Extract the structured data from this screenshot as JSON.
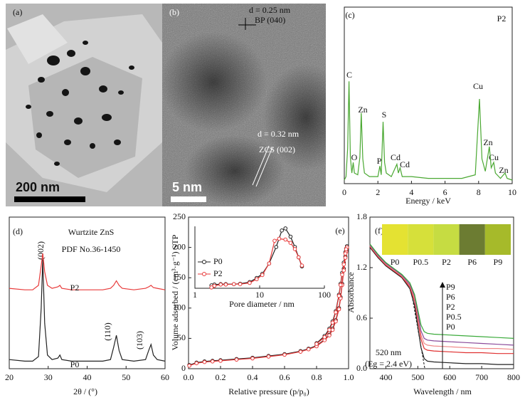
{
  "images": [
    {
      "panel_label": "(a)",
      "scale_bar": "200 nm"
    },
    {
      "panel_label": "(b)",
      "scale_bar": "5 nm",
      "annotations": [
        "d = 0.25 nm",
        "BP (040)",
        "d = 0.32 nm",
        "ZCS (002)"
      ]
    }
  ],
  "chart_data": [
    {
      "type": "line",
      "panel_label": "(c)",
      "x_label": "Energy / keV",
      "xlim": [
        0,
        10
      ],
      "xticks": [
        0,
        2,
        4,
        6,
        8,
        10
      ],
      "ylim": [
        0,
        100
      ],
      "annotations": [
        "P2",
        "C",
        "O",
        "Zn",
        "P",
        "S",
        "Cd",
        "Cd",
        "Cu",
        "Zn",
        "Cu",
        "Zn"
      ],
      "series": [
        {
          "name": "P2",
          "color": "#4aa832",
          "x": [
            0,
            0.1,
            0.2,
            0.28,
            0.36,
            0.45,
            0.53,
            0.6,
            0.8,
            0.93,
            1.01,
            1.1,
            1.2,
            1.5,
            2.0,
            2.12,
            2.2,
            2.31,
            2.4,
            2.5,
            2.8,
            3.13,
            3.22,
            3.32,
            3.45,
            4,
            5,
            6,
            7,
            7.8,
            8.05,
            8.2,
            8.4,
            8.64,
            8.75,
            8.9,
            9.0,
            9.3,
            9.57,
            9.7,
            10
          ],
          "values": [
            2,
            4,
            20,
            58,
            15,
            6,
            12,
            6,
            5,
            15,
            40,
            14,
            6,
            4,
            4,
            10,
            5,
            35,
            12,
            6,
            4,
            11,
            6,
            9,
            4,
            4,
            3,
            3,
            3,
            5,
            48,
            14,
            7,
            21,
            9,
            12,
            6,
            3,
            6,
            3,
            2
          ]
        }
      ]
    },
    {
      "type": "line",
      "panel_label": "(d)",
      "x_label": "2θ / (°)",
      "xlim": [
        20,
        60
      ],
      "xticks": [
        20,
        30,
        40,
        50,
        60
      ],
      "ylim": [
        0,
        100
      ],
      "annotations": [
        "Wurtzite ZnS",
        "PDF No.36-1450",
        "(002)",
        "(110)",
        "(103)"
      ],
      "series": [
        {
          "name": "P0",
          "color": "#222222",
          "x": [
            20,
            24,
            26,
            27.5,
            28.2,
            28.6,
            29.1,
            29.8,
            31,
            32.5,
            33,
            33.5,
            36,
            40,
            44,
            46,
            46.8,
            47.5,
            48.2,
            49,
            52,
            55,
            55.8,
            56.4,
            57,
            58,
            60
          ],
          "values": [
            6,
            5,
            5,
            8,
            40,
            72,
            30,
            9,
            6,
            7,
            9,
            6,
            5,
            5,
            5,
            6,
            14,
            22,
            12,
            6,
            5,
            6,
            12,
            16,
            9,
            6,
            5
          ]
        },
        {
          "name": "P2",
          "color": "#e83a3a",
          "x": [
            20,
            24,
            26,
            27.5,
            28.2,
            28.6,
            29.1,
            29.8,
            31,
            32.5,
            33,
            33.5,
            36,
            40,
            44,
            46,
            46.8,
            47.5,
            48.2,
            49,
            52,
            55,
            55.8,
            56.4,
            57,
            58,
            60
          ],
          "values": [
            53,
            52,
            52,
            55,
            68,
            76,
            64,
            55,
            53,
            54,
            55,
            53,
            52,
            52,
            52,
            53,
            55,
            58,
            55,
            53,
            52,
            53,
            54,
            55,
            53.5,
            53,
            52
          ]
        }
      ]
    },
    {
      "type": "line",
      "panel_label": "(e)",
      "x_label": "Relative pressure (p/p₀)",
      "y_label": "Volume adsorbed / (cm³·g⁻¹) STP",
      "markers": true,
      "xlim": [
        0,
        1
      ],
      "xticks": [
        {
          "value": 0,
          "label": "0.0"
        },
        0.2,
        0.4,
        0.6,
        0.8,
        {
          "value": 1,
          "label": "1.0"
        }
      ],
      "ylim": [
        0,
        250
      ],
      "yticks": [
        0,
        50,
        100,
        150,
        200,
        250
      ],
      "series": [
        {
          "name": "P0",
          "color": "#222222",
          "x": [
            0.005,
            0.05,
            0.1,
            0.15,
            0.2,
            0.3,
            0.4,
            0.5,
            0.6,
            0.7,
            0.75,
            0.8,
            0.85,
            0.88,
            0.9,
            0.92,
            0.94,
            0.95,
            0.96,
            0.97,
            0.98,
            0.985,
            0.99,
            0.985,
            0.98,
            0.97,
            0.96,
            0.95,
            0.94,
            0.92,
            0.9,
            0.88,
            0.85,
            0.8
          ],
          "values": [
            6,
            10,
            12,
            13,
            14,
            16,
            18,
            21,
            24,
            29,
            33,
            38,
            48,
            56,
            66,
            80,
            100,
            118,
            140,
            165,
            185,
            195,
            202,
            198,
            192,
            175,
            158,
            140,
            122,
            95,
            78,
            66,
            54,
            42
          ]
        },
        {
          "name": "P2",
          "color": "#e83a3a",
          "x": [
            0.005,
            0.05,
            0.1,
            0.15,
            0.2,
            0.3,
            0.4,
            0.5,
            0.6,
            0.7,
            0.75,
            0.8,
            0.85,
            0.88,
            0.9,
            0.92,
            0.94,
            0.95,
            0.96,
            0.97,
            0.98,
            0.985,
            0.99,
            0.985,
            0.98,
            0.97,
            0.96,
            0.95,
            0.94,
            0.92,
            0.9,
            0.88,
            0.85,
            0.8
          ],
          "values": [
            5,
            9,
            11,
            12,
            13,
            15,
            17,
            20,
            23,
            28,
            32,
            37,
            47,
            55,
            64,
            78,
            98,
            116,
            138,
            162,
            183,
            193,
            200,
            197,
            190,
            172,
            155,
            138,
            120,
            93,
            76,
            64,
            52,
            41
          ]
        }
      ]
    },
    {
      "type": "line",
      "x_label": "Pore diameter / nm",
      "markers": true,
      "log_x": true,
      "legend": true,
      "xlim": [
        1,
        100
      ],
      "xticks": [
        1,
        10,
        100
      ],
      "ylim": [
        90,
        240
      ],
      "series": [
        {
          "name": "P0",
          "color": "#222222",
          "x": [
            1.8,
            2,
            2.5,
            3,
            4,
            5,
            7,
            9,
            11,
            14,
            18,
            22,
            25,
            30,
            35,
            40,
            45
          ],
          "values": [
            97,
            99,
            100,
            100,
            100,
            101,
            105,
            115,
            125,
            150,
            190,
            230,
            235,
            215,
            190,
            165,
            143
          ]
        },
        {
          "name": "P2",
          "color": "#e83a3a",
          "x": [
            1.8,
            2,
            2.5,
            3,
            4,
            5,
            7,
            9,
            11,
            14,
            17,
            20,
            25,
            30,
            35,
            40,
            45
          ],
          "values": [
            92,
            96,
            99,
            99,
            100,
            100,
            103,
            112,
            122,
            150,
            205,
            210,
            208,
            200,
            185,
            165,
            145
          ]
        }
      ]
    },
    {
      "type": "line",
      "panel_label": "(f)",
      "x_label": "Wavelength / nm",
      "y_label": "Absorbance",
      "xlim": [
        350,
        800
      ],
      "xticks": [
        400,
        500,
        600,
        700,
        800
      ],
      "ylim": [
        0,
        1.8
      ],
      "yticks": [
        {
          "value": 0,
          "label": "0.0"
        },
        0.6,
        1.2,
        1.8
      ],
      "annotations": [
        "520 nm",
        "(Eg = 2.4 eV)"
      ],
      "tangent": {
        "x": [
          478,
          522
        ],
        "values": [
          0.95,
          0
        ]
      },
      "series": [
        {
          "name": "P0",
          "color": "#222222",
          "swatch": "#e4e232",
          "x": [
            350,
            375,
            400,
            425,
            450,
            475,
            490,
            500,
            510,
            520,
            530,
            550,
            600,
            650,
            700,
            750,
            800
          ],
          "values": [
            1.44,
            1.32,
            1.22,
            1.15,
            1.08,
            0.95,
            0.75,
            0.5,
            0.25,
            0.12,
            0.09,
            0.08,
            0.07,
            0.06,
            0.06,
            0.05,
            0.05
          ]
        },
        {
          "name": "P0.5",
          "color": "#e03030",
          "swatch": "#d6e03a",
          "x": [
            350,
            375,
            400,
            425,
            450,
            475,
            490,
            500,
            510,
            520,
            530,
            550,
            600,
            650,
            700,
            750,
            800
          ],
          "values": [
            1.45,
            1.33,
            1.23,
            1.16,
            1.09,
            0.97,
            0.8,
            0.58,
            0.35,
            0.24,
            0.22,
            0.21,
            0.2,
            0.19,
            0.19,
            0.18,
            0.18
          ]
        },
        {
          "name": "P2",
          "color": "#f08a8a",
          "swatch": "#c6dc42",
          "x": [
            350,
            375,
            400,
            425,
            450,
            475,
            490,
            500,
            510,
            520,
            530,
            550,
            600,
            650,
            700,
            750,
            800
          ],
          "values": [
            1.46,
            1.34,
            1.24,
            1.17,
            1.1,
            0.99,
            0.83,
            0.62,
            0.4,
            0.3,
            0.28,
            0.27,
            0.26,
            0.25,
            0.24,
            0.24,
            0.23
          ]
        },
        {
          "name": "P6",
          "color": "#8a4a9a",
          "swatch": "#6c7c32",
          "x": [
            350,
            375,
            400,
            425,
            450,
            475,
            490,
            500,
            510,
            520,
            530,
            550,
            600,
            650,
            700,
            750,
            800
          ],
          "values": [
            1.47,
            1.35,
            1.25,
            1.18,
            1.11,
            1.0,
            0.86,
            0.66,
            0.45,
            0.36,
            0.34,
            0.33,
            0.32,
            0.31,
            0.3,
            0.29,
            0.28
          ]
        },
        {
          "name": "P9",
          "color": "#3aaa3a",
          "swatch": "#a6ba2a",
          "x": [
            350,
            375,
            400,
            425,
            450,
            475,
            490,
            500,
            510,
            520,
            530,
            550,
            600,
            650,
            700,
            750,
            800
          ],
          "values": [
            1.48,
            1.36,
            1.26,
            1.19,
            1.12,
            1.02,
            0.88,
            0.7,
            0.52,
            0.44,
            0.42,
            0.41,
            0.4,
            0.39,
            0.38,
            0.37,
            0.36
          ]
        }
      ]
    }
  ]
}
